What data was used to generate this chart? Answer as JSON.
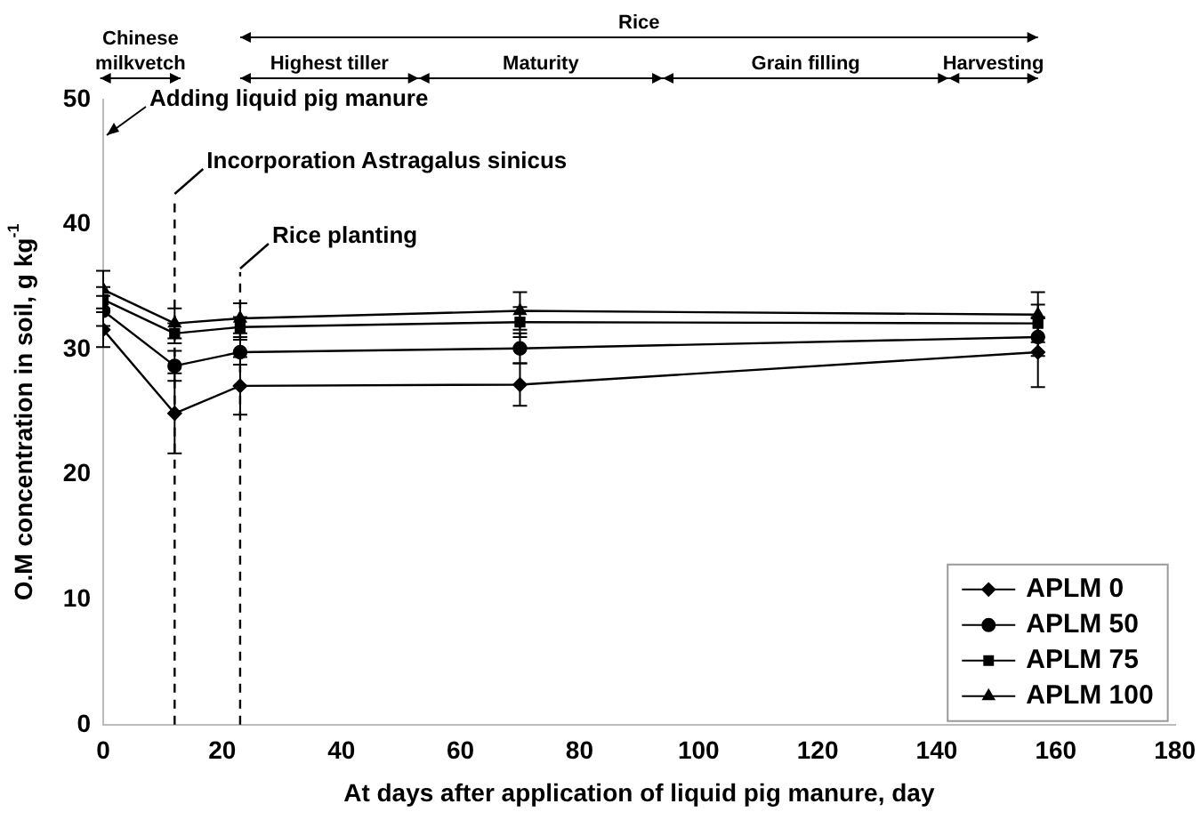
{
  "chart_data": {
    "type": "line",
    "xlabel": "At days after application of liquid pig manure, day",
    "ylabel": "O.M concentration in soil, g kg$^{-1}$",
    "x": [
      0,
      12,
      23,
      70,
      157
    ],
    "series": [
      {
        "name": "APLM 0",
        "color": "#000000",
        "marker": "diamond",
        "values": [
          31.6,
          24.9,
          27.1,
          27.2,
          29.8
        ],
        "errors": [
          1.4,
          3.2,
          2.3,
          1.7,
          2.8
        ]
      },
      {
        "name": "APLM 50",
        "color": "#000000",
        "marker": "circle",
        "values": [
          33.1,
          28.7,
          29.8,
          30.1,
          31.0
        ],
        "errors": [
          1.2,
          1.2,
          1.0,
          1.2,
          1.5
        ]
      },
      {
        "name": "APLM 75",
        "color": "#000000",
        "marker": "square",
        "values": [
          34.0,
          31.3,
          31.8,
          32.2,
          32.1
        ],
        "errors": [
          1.0,
          0.8,
          0.8,
          1.2,
          1.5
        ]
      },
      {
        "name": "APLM 100",
        "color": "#000000",
        "marker": "triangle",
        "values": [
          34.8,
          32.1,
          32.5,
          33.1,
          32.8
        ],
        "errors": [
          1.5,
          1.2,
          1.2,
          1.5,
          1.8
        ]
      }
    ],
    "xlim": [
      0,
      180
    ],
    "xticks": [
      0,
      20,
      40,
      60,
      80,
      100,
      120,
      140,
      160,
      180
    ],
    "ylim": [
      0,
      50
    ],
    "yticks": [
      0,
      10,
      20,
      30,
      40,
      50
    ],
    "grid": false,
    "legend": "bottom right",
    "ref_lines": [
      {
        "axis": "x",
        "value": 12,
        "label": "Incorporation Astragalus sinicus",
        "line_style": "dashed",
        "color": "#000000"
      },
      {
        "axis": "x",
        "value": 23,
        "label": "Rice planting",
        "line_style": "dashed",
        "color": "#000000"
      }
    ],
    "annotations": [
      "Chinese milkvetch",
      "Rice",
      "Highest tiller",
      "Maturity",
      "Grain filling",
      "Harvesting",
      "Adding liquid pig manure"
    ]
  }
}
